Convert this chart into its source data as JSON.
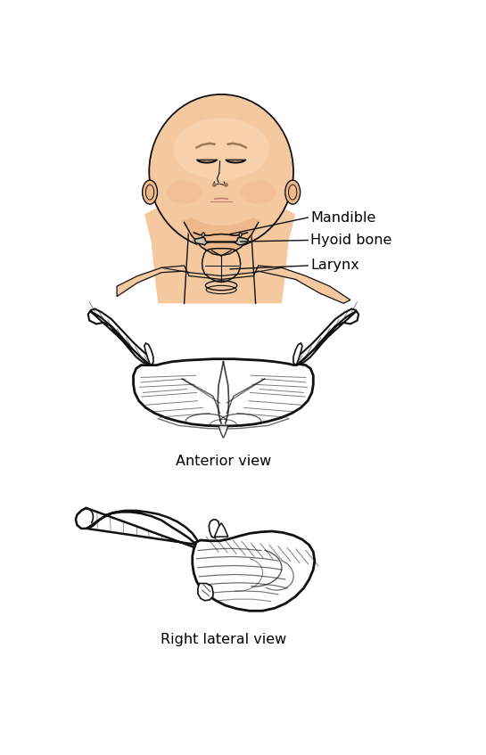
{
  "bg_color": "#ffffff",
  "skin_light": "#F5C9A0",
  "skin_mid": "#EEB98A",
  "skin_dark": "#D9A070",
  "skin_pink": "#E8A090",
  "hyoid_fill": "#C8C4B0",
  "bone_line": "#111111",
  "label_color": "#000000",
  "labels": {
    "mandible": "Mandible",
    "hyoid": "Hyoid bone",
    "larynx": "Larynx",
    "anterior": "Anterior view",
    "lateral": "Right lateral view"
  },
  "font_size": 11.5
}
